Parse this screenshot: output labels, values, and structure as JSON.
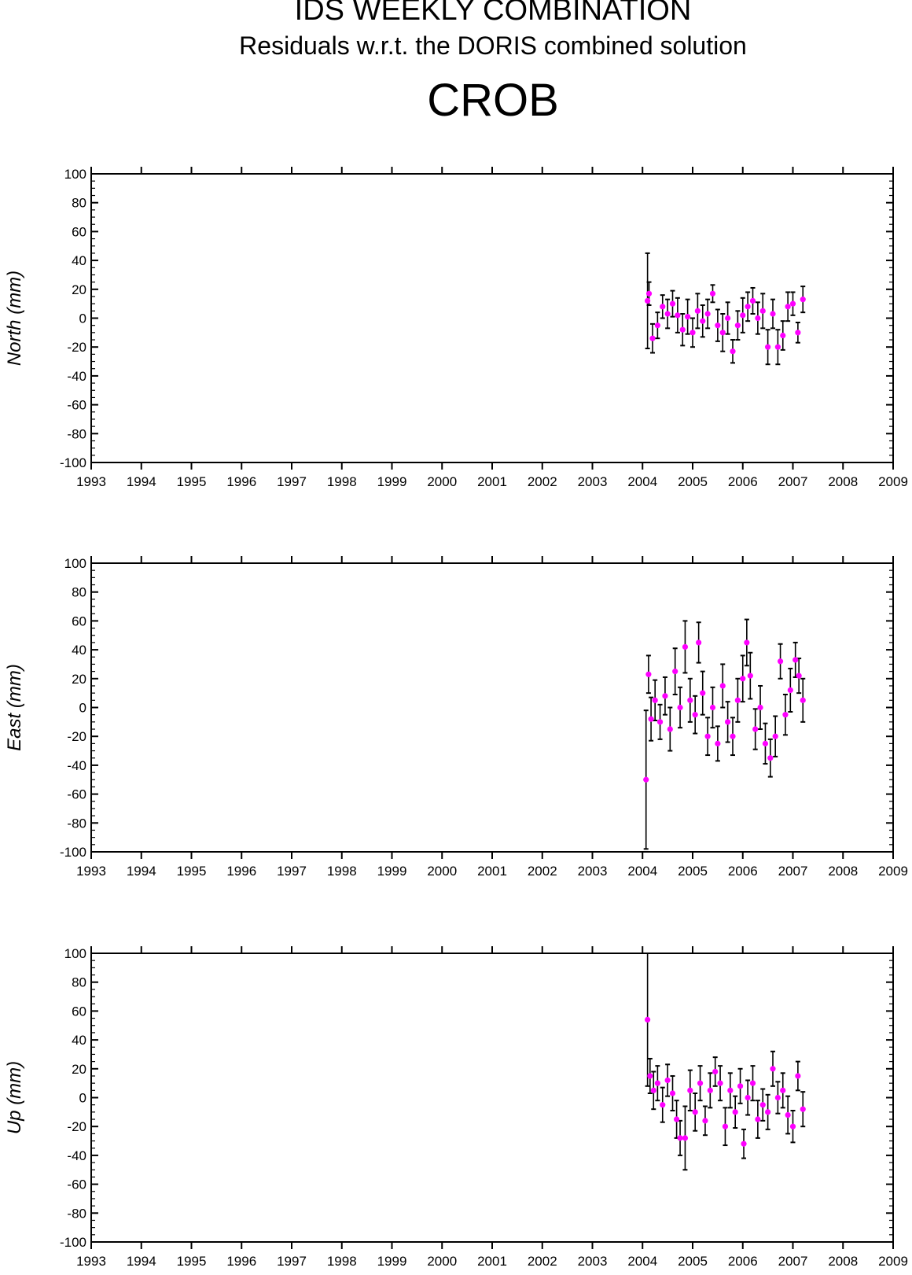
{
  "header": {
    "title": "IDS WEEKLY COMBINATION",
    "subtitle": "Residuals w.r.t. the DORIS combined solution",
    "station": "CROB"
  },
  "colors": {
    "point": "#ff00ff",
    "errorbar": "#000000",
    "axis": "#000000",
    "background": "#ffffff"
  },
  "chart_data": [
    {
      "type": "scatter",
      "ylabel": "North (mm)",
      "ylim": [
        -100,
        100
      ],
      "xlim": [
        1993,
        2009
      ],
      "y_ticks": [
        100,
        80,
        60,
        40,
        20,
        0,
        -20,
        -40,
        -60,
        -80,
        -100
      ],
      "x_ticks": [
        1993,
        1994,
        1995,
        1996,
        1997,
        1998,
        1999,
        2000,
        2001,
        2002,
        2003,
        2004,
        2005,
        2006,
        2007,
        2008,
        2009
      ],
      "grid": false,
      "series": [
        {
          "x": [
            2004.1,
            2004.13,
            2004.2,
            2004.3,
            2004.4,
            2004.5,
            2004.6,
            2004.7,
            2004.8,
            2004.9,
            2005.0,
            2005.1,
            2005.2,
            2005.3,
            2005.4,
            2005.5,
            2005.6,
            2005.7,
            2005.8,
            2005.9,
            2006.0,
            2006.1,
            2006.2,
            2006.3,
            2006.4,
            2006.5,
            2006.6,
            2006.7,
            2006.8,
            2006.9,
            2007.0,
            2007.1,
            2007.2
          ],
          "y": [
            12,
            17,
            -14,
            -5,
            8,
            3,
            10,
            2,
            -8,
            1,
            -10,
            5,
            -2,
            3,
            17,
            -5,
            -10,
            0,
            -23,
            -5,
            2,
            8,
            12,
            0,
            5,
            -20,
            3,
            -20,
            -12,
            8,
            10,
            -10,
            13
          ],
          "err": [
            33,
            8,
            10,
            9,
            8,
            10,
            9,
            12,
            11,
            12,
            10,
            12,
            11,
            10,
            6,
            11,
            13,
            11,
            8,
            10,
            12,
            10,
            9,
            11,
            12,
            12,
            10,
            12,
            10,
            10,
            8,
            7,
            9
          ]
        }
      ]
    },
    {
      "type": "scatter",
      "ylabel": "East (mm)",
      "ylim": [
        -100,
        100
      ],
      "xlim": [
        1993,
        2009
      ],
      "y_ticks": [
        100,
        80,
        60,
        40,
        20,
        0,
        -20,
        -40,
        -60,
        -80,
        -100
      ],
      "x_ticks": [
        1993,
        1994,
        1995,
        1996,
        1997,
        1998,
        1999,
        2000,
        2001,
        2002,
        2003,
        2004,
        2005,
        2006,
        2007,
        2008,
        2009
      ],
      "grid": false,
      "series": [
        {
          "x": [
            2004.07,
            2004.12,
            2004.17,
            2004.25,
            2004.35,
            2004.45,
            2004.55,
            2004.65,
            2004.75,
            2004.85,
            2004.95,
            2005.05,
            2005.12,
            2005.2,
            2005.3,
            2005.4,
            2005.5,
            2005.6,
            2005.7,
            2005.8,
            2005.9,
            2006.0,
            2006.08,
            2006.15,
            2006.25,
            2006.35,
            2006.45,
            2006.55,
            2006.65,
            2006.75,
            2006.85,
            2006.95,
            2007.05,
            2007.12,
            2007.2
          ],
          "y": [
            -50,
            23,
            -8,
            5,
            -10,
            8,
            -15,
            25,
            0,
            42,
            5,
            -5,
            45,
            10,
            -20,
            0,
            -25,
            15,
            -10,
            -20,
            5,
            20,
            45,
            22,
            -15,
            0,
            -25,
            -35,
            -20,
            32,
            -5,
            12,
            33,
            22,
            5
          ],
          "err": [
            48,
            13,
            15,
            14,
            12,
            13,
            15,
            16,
            14,
            18,
            15,
            13,
            14,
            15,
            13,
            14,
            12,
            15,
            14,
            13,
            15,
            16,
            16,
            16,
            14,
            15,
            14,
            13,
            14,
            12,
            14,
            15,
            12,
            12,
            15
          ]
        }
      ]
    },
    {
      "type": "scatter",
      "ylabel": "Up (mm)",
      "ylim": [
        -100,
        100
      ],
      "xlim": [
        1993,
        2009
      ],
      "y_ticks": [
        100,
        80,
        60,
        40,
        20,
        0,
        -20,
        -40,
        -60,
        -80,
        -100
      ],
      "x_ticks": [
        1993,
        1994,
        1995,
        1996,
        1997,
        1998,
        1999,
        2000,
        2001,
        2002,
        2003,
        2004,
        2005,
        2006,
        2007,
        2008,
        2009
      ],
      "grid": false,
      "series": [
        {
          "x": [
            2004.1,
            2004.15,
            2004.22,
            2004.3,
            2004.4,
            2004.5,
            2004.6,
            2004.68,
            2004.75,
            2004.85,
            2004.95,
            2005.05,
            2005.15,
            2005.25,
            2005.35,
            2005.45,
            2005.55,
            2005.65,
            2005.75,
            2005.85,
            2005.95,
            2006.02,
            2006.1,
            2006.2,
            2006.3,
            2006.4,
            2006.5,
            2006.6,
            2006.7,
            2006.8,
            2006.9,
            2007.0,
            2007.1,
            2007.2
          ],
          "y": [
            54,
            15,
            5,
            10,
            -5,
            12,
            3,
            -15,
            -28,
            -28,
            5,
            -10,
            10,
            -16,
            5,
            18,
            10,
            -20,
            5,
            -10,
            8,
            -32,
            0,
            10,
            -15,
            -5,
            -10,
            20,
            0,
            5,
            -12,
            -20,
            15,
            -8
          ],
          "err": [
            46,
            12,
            13,
            12,
            12,
            11,
            12,
            13,
            12,
            22,
            14,
            13,
            12,
            10,
            12,
            10,
            12,
            13,
            12,
            11,
            12,
            10,
            12,
            12,
            13,
            11,
            12,
            12,
            11,
            12,
            13,
            11,
            10,
            12
          ]
        }
      ]
    }
  ]
}
